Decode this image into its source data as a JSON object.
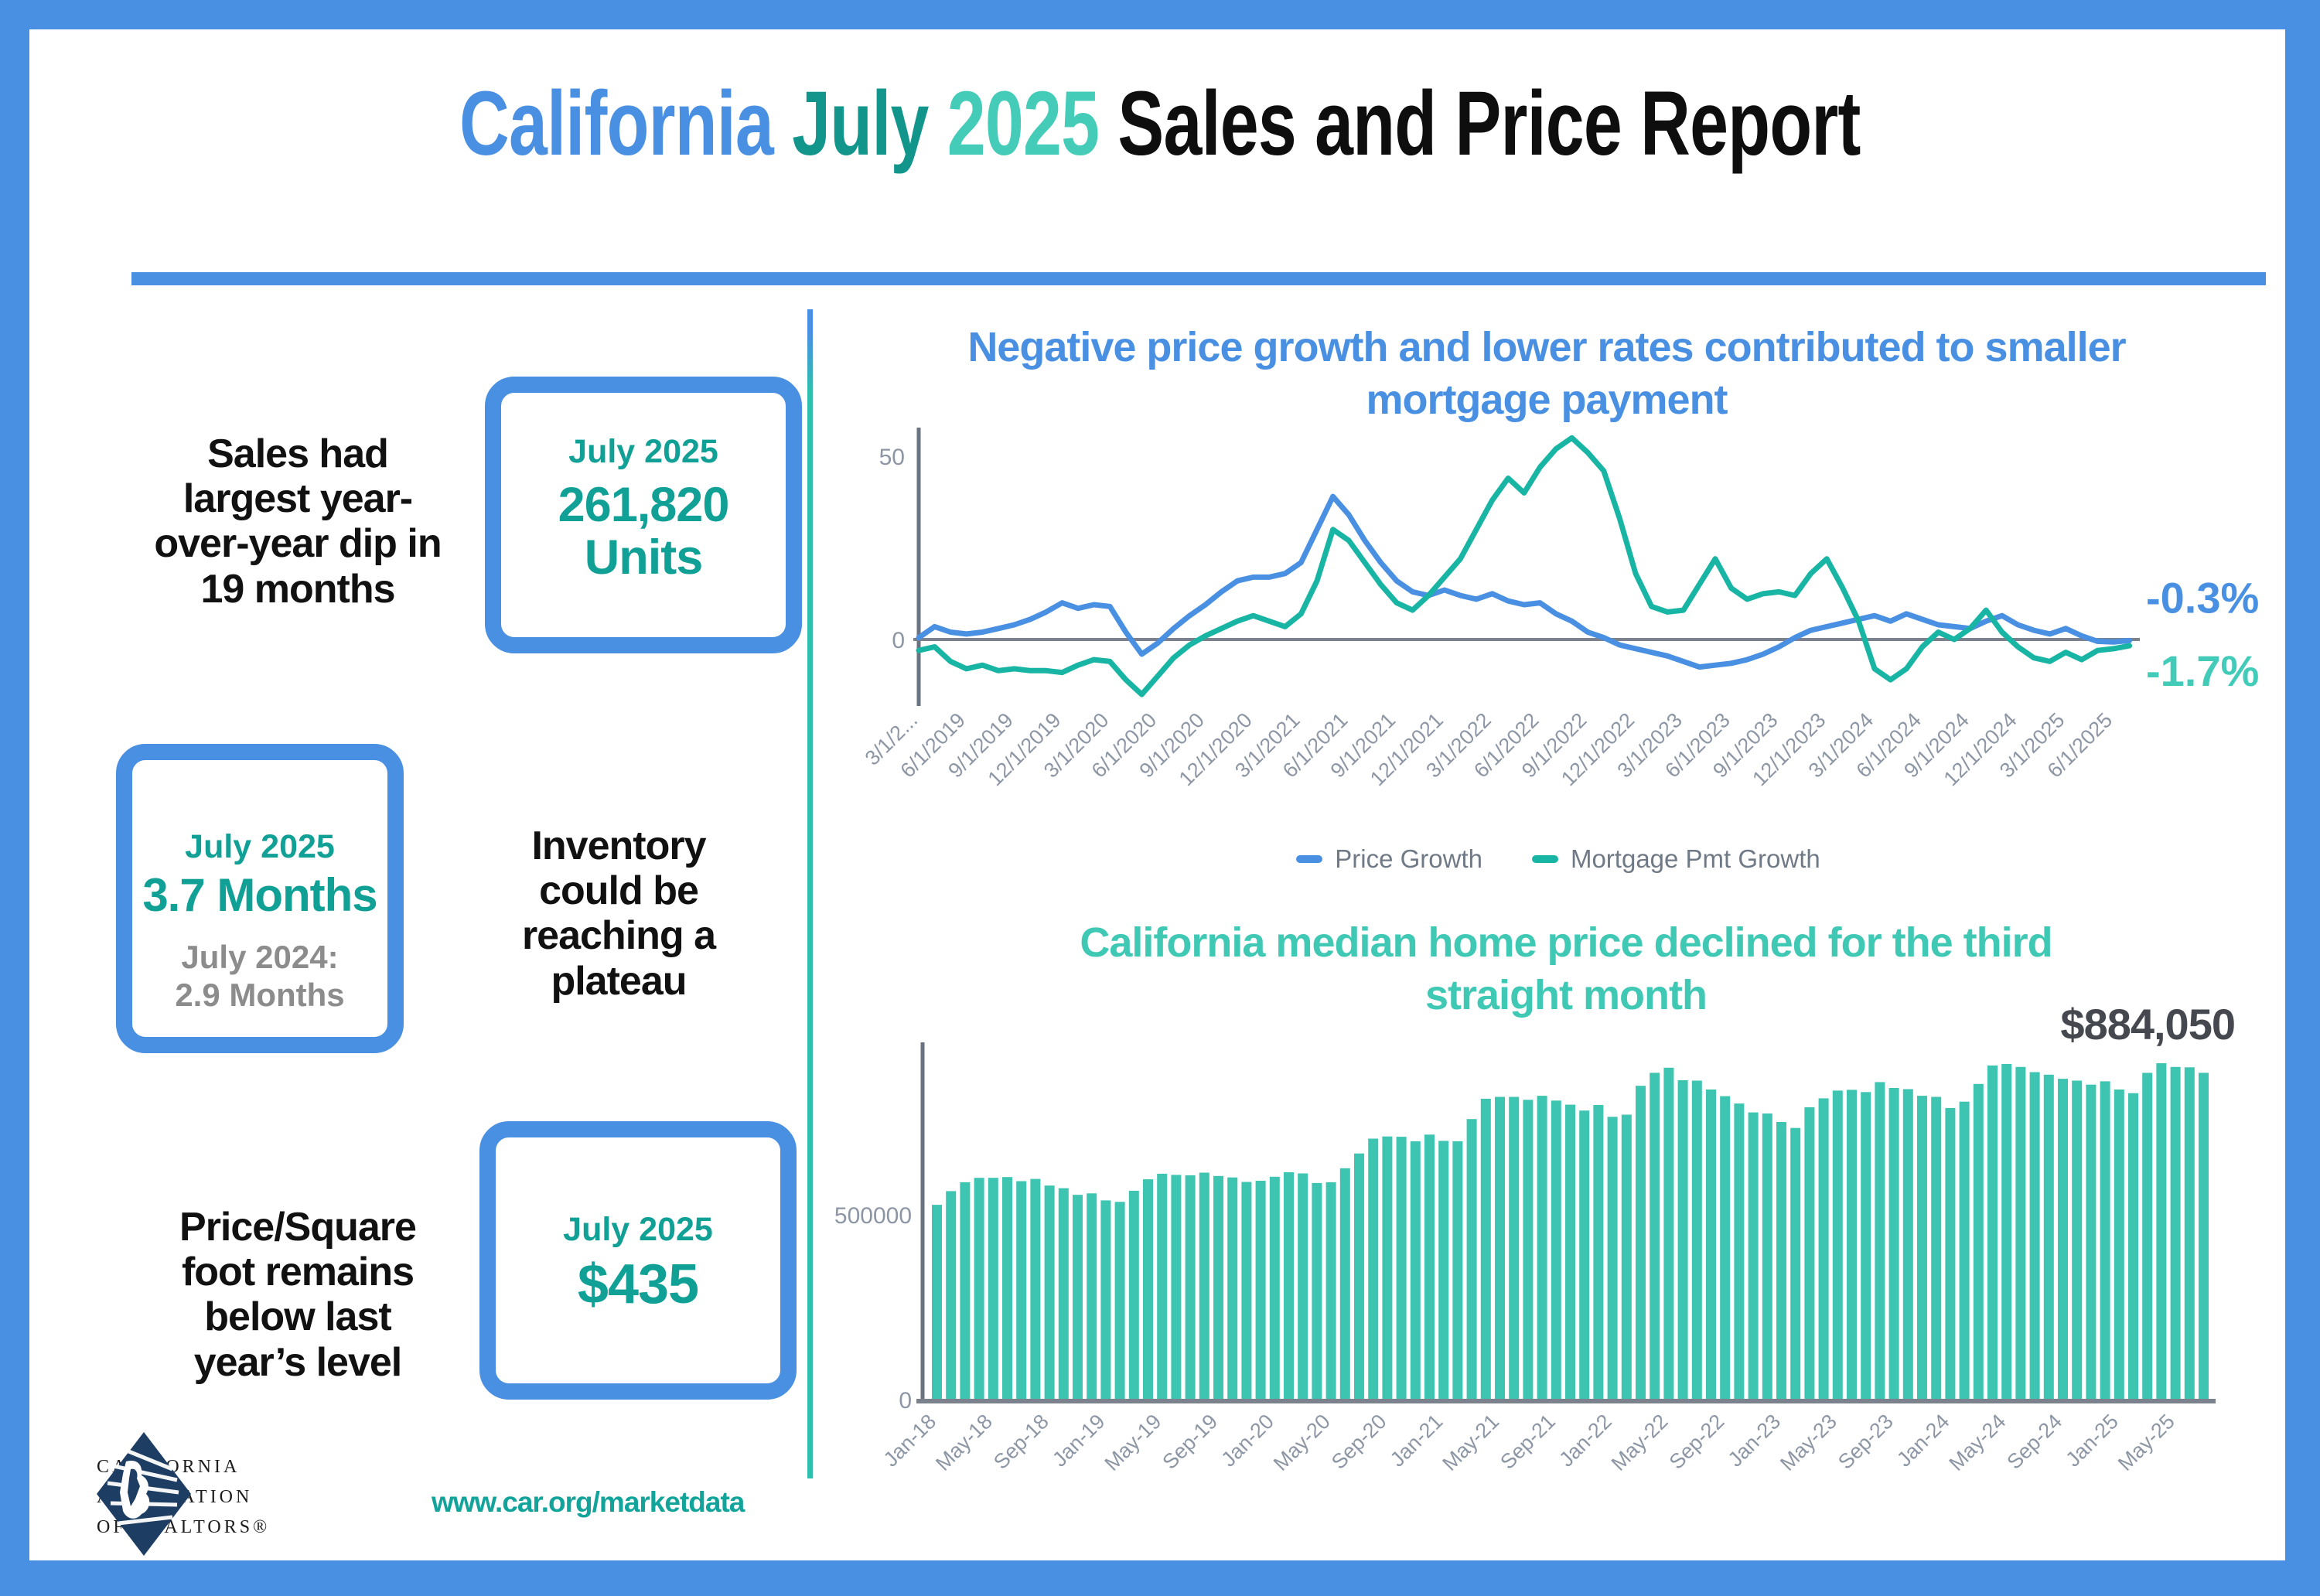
{
  "page": {
    "title_parts": {
      "california": "California",
      "month": "July",
      "year": "2025",
      "rest": "Sales and Price Report"
    },
    "colors": {
      "accent_blue": "#4a90e2",
      "accent_teal": "#10a095",
      "accent_mint": "#44ccb8",
      "logo_navy": "#1d3d63"
    }
  },
  "stats": [
    {
      "label": "Sales had largest year-over-year dip in 19 months",
      "box_title": "July 2025",
      "box_value": "261,820",
      "box_value2": "Units"
    },
    {
      "box_title": "July 2025",
      "box_value": "3.7 Months",
      "box_sub1": "July 2024:",
      "box_sub2": "2.9 Months",
      "label": "Inventory could be reaching a plateau"
    },
    {
      "label": "Price/Square foot remains below last year’s level",
      "box_title": "July 2025",
      "box_value": "$435"
    }
  ],
  "footer": {
    "logo_line1": "CALIFORNIA",
    "logo_line2": "ASSOCIATION",
    "logo_line3": "OF REALTORS®",
    "url": "www.car.org/marketdata"
  },
  "chart_data": [
    {
      "type": "line",
      "title": "Negative price growth and lower rates contributed to smaller mortgage payment",
      "x_label_note": "monthly, Mar 2019 - Jul 2025",
      "x_tick_labels": [
        "3/1/2...",
        "6/1/2019",
        "9/1/2019",
        "12/1/2019",
        "3/1/2020",
        "6/1/2020",
        "9/1/2020",
        "12/1/2020",
        "3/1/2021",
        "6/1/2021",
        "9/1/2021",
        "12/1/2021",
        "3/1/2022",
        "6/1/2022",
        "9/1/2022",
        "12/1/2022",
        "3/1/2023",
        "6/1/2023",
        "9/1/2023",
        "12/1/2023",
        "3/1/2024",
        "6/1/2024",
        "9/1/2024",
        "12/1/2024",
        "3/1/2025",
        "6/1/2025"
      ],
      "y_ticks": [
        0,
        50
      ],
      "ylim": [
        -17,
        58
      ],
      "grid": false,
      "legend_position": "bottom",
      "series": [
        {
          "name": "Price Growth",
          "color": "#4a90e2",
          "end_label": "-0.3%",
          "end_label_color": "#4a90e2",
          "values": [
            0.5,
            3.5,
            2,
            1.5,
            2,
            3,
            4,
            5.5,
            7.5,
            10,
            8.5,
            9.5,
            9,
            2,
            -4,
            -1,
            3,
            6.5,
            9.5,
            13,
            16,
            17,
            17,
            18,
            21,
            30,
            39,
            34,
            27,
            21,
            16,
            13,
            12,
            13.5,
            12,
            11,
            12.5,
            10.5,
            9.5,
            10,
            7,
            5,
            2,
            0.5,
            -1.5,
            -2.5,
            -3.5,
            -4.5,
            -6,
            -7.5,
            -7,
            -6.5,
            -5.5,
            -4,
            -2,
            0.5,
            2.5,
            3.5,
            4.5,
            5.5,
            6.5,
            5,
            7,
            5.5,
            4,
            3.5,
            3,
            5,
            6.5,
            4,
            2.5,
            1.5,
            3,
            1,
            -0.5,
            -0.7,
            -0.3
          ]
        },
        {
          "name": "Mortgage Pmt Growth",
          "color": "#18b5a4",
          "end_label": "-1.7%",
          "end_label_color": "#41cbb8",
          "values": [
            -3,
            -2,
            -6,
            -8,
            -7,
            -8.5,
            -8,
            -8.5,
            -8.5,
            -9,
            -7,
            -5.5,
            -6,
            -11,
            -15,
            -10,
            -5,
            -1.5,
            1,
            3,
            5,
            6.5,
            5,
            3.5,
            7,
            16,
            30,
            27,
            21,
            15,
            10,
            8,
            12,
            17,
            22,
            30,
            38,
            44,
            40,
            47,
            52,
            55,
            51,
            46,
            33,
            18,
            9,
            7.5,
            8,
            15,
            22,
            14,
            11,
            12.5,
            13,
            12,
            18,
            22,
            14,
            5,
            -8,
            -11,
            -8,
            -2,
            2,
            0,
            3,
            8,
            2,
            -2,
            -5,
            -6,
            -3.5,
            -5.5,
            -3,
            -2.5,
            -1.7
          ]
        }
      ]
    },
    {
      "type": "bar",
      "title": "California median home price declined for the third straight month",
      "annotation": "$884,050",
      "bar_color": "#3dc5b2",
      "x_label_note": "monthly, Jan 2018 - Jul 2025",
      "x_tick_labels": [
        "Jan-18",
        "May-18",
        "Sep-18",
        "Jan-19",
        "May-19",
        "Sep-19",
        "Jan-20",
        "May-20",
        "Sep-20",
        "Jan-21",
        "May-21",
        "Sep-21",
        "Jan-22",
        "May-22",
        "Sep-22",
        "Jan-23",
        "May-23",
        "Sep-23",
        "Jan-24",
        "May-24",
        "Sep-24",
        "Jan-25",
        "May-25"
      ],
      "x_tick_step": 4,
      "y_ticks": [
        0,
        500000
      ],
      "ylim": [
        0,
        950000
      ],
      "values": [
        527000,
        564000,
        588000,
        600000,
        600000,
        602000,
        591000,
        597000,
        579000,
        572000,
        554000,
        558000,
        539000,
        535000,
        565000,
        596000,
        611000,
        608000,
        607000,
        614000,
        605000,
        601000,
        589000,
        592000,
        603000,
        615000,
        612000,
        586000,
        588000,
        626000,
        666000,
        706000,
        712000,
        711000,
        699000,
        717000,
        700000,
        699000,
        759000,
        814000,
        819000,
        819000,
        811000,
        822000,
        809000,
        798000,
        782000,
        797000,
        765000,
        771000,
        849000,
        884000,
        898000,
        864000,
        863000,
        839000,
        821000,
        801000,
        777000,
        774000,
        751000,
        735000,
        791000,
        815000,
        836000,
        838000,
        832000,
        859000,
        843000,
        840000,
        822000,
        819000,
        789000,
        806000,
        854000,
        904000,
        908000,
        900000,
        886000,
        879000,
        868000,
        863000,
        852000,
        861000,
        839000,
        829000,
        884000,
        910000,
        900000,
        899000,
        884050
      ]
    }
  ]
}
